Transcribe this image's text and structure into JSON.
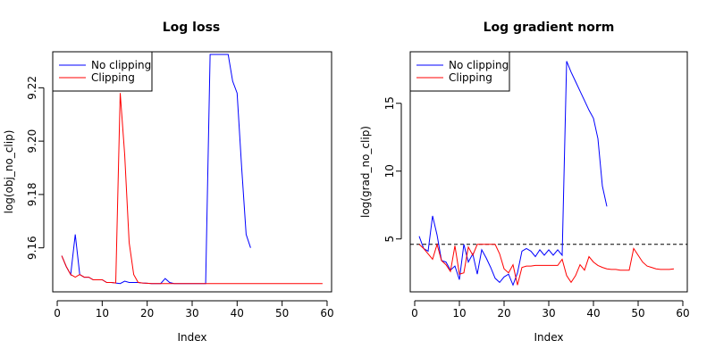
{
  "chart_data": [
    {
      "type": "line",
      "title": "Log loss",
      "xlabel": "Index",
      "ylabel": "log(obj_no_clip)",
      "xlim": [
        -1,
        61
      ],
      "ylim": [
        9.1435,
        9.2335
      ],
      "xticks": [
        0,
        10,
        20,
        30,
        40,
        50,
        60
      ],
      "yticks": [
        9.16,
        9.18,
        9.2,
        9.22
      ],
      "ytick_labels": [
        "9.16",
        "9.18",
        "9.20",
        "9.22"
      ],
      "legend_position": "top-left",
      "hline": null,
      "series": [
        {
          "name": "No clipping",
          "color": "#0000ff",
          "values": [
            9.157,
            9.153,
            9.15,
            9.165,
            9.15,
            9.149,
            9.149,
            9.148,
            9.148,
            9.148,
            9.147,
            9.147,
            9.1468,
            9.1466,
            9.1475,
            9.147,
            9.147,
            9.147,
            9.1468,
            9.1467,
            9.1466,
            9.1466,
            9.1466,
            9.1485,
            9.147,
            9.1466,
            9.1466,
            9.1466,
            9.1466,
            9.1466,
            9.1466,
            9.1466,
            9.1466,
            9.2325,
            9.2325,
            9.2325,
            9.2325,
            9.2325,
            9.2225,
            9.218,
            9.19,
            9.165,
            9.16
          ]
        },
        {
          "name": "Clipping",
          "color": "#ff0000",
          "values": [
            9.157,
            9.153,
            9.15,
            9.149,
            9.15,
            9.149,
            9.149,
            9.148,
            9.148,
            9.148,
            9.147,
            9.147,
            9.1468,
            9.218,
            9.195,
            9.162,
            9.15,
            9.147,
            9.1468,
            9.1467,
            9.1466,
            9.1466,
            9.1466,
            9.1466,
            9.1466,
            9.1466,
            9.1466,
            9.1466,
            9.1466,
            9.1466,
            9.1466,
            9.1466,
            9.1466,
            9.1466,
            9.1466,
            9.1466,
            9.1466,
            9.1466,
            9.1466,
            9.1466,
            9.1466,
            9.1466,
            9.1466,
            9.1466,
            9.1466,
            9.1466,
            9.1466,
            9.1466,
            9.1466,
            9.1466,
            9.1466,
            9.1466,
            9.1466,
            9.1466,
            9.1466,
            9.1466,
            9.1466,
            9.1466,
            9.1466
          ]
        }
      ]
    },
    {
      "type": "line",
      "title": "Log gradient norm",
      "xlabel": "Index",
      "ylabel": "log(grad_no_clip)",
      "xlim": [
        -1,
        61
      ],
      "ylim": [
        1.1,
        18.8
      ],
      "xticks": [
        0,
        10,
        20,
        30,
        40,
        50,
        60
      ],
      "yticks": [
        5,
        10,
        15
      ],
      "ytick_labels": [
        "5",
        "10",
        "15"
      ],
      "legend_position": "top-left",
      "hline": 4.6,
      "series": [
        {
          "name": "No clipping",
          "color": "#0000ff",
          "values": [
            5.2,
            4.3,
            4.1,
            6.7,
            5.3,
            3.4,
            3.3,
            2.7,
            3.0,
            2.0,
            4.6,
            3.3,
            3.9,
            2.4,
            4.2,
            3.6,
            2.9,
            2.1,
            1.8,
            2.2,
            2.4,
            1.6,
            2.5,
            4.1,
            4.3,
            4.1,
            3.7,
            4.2,
            3.8,
            4.2,
            3.8,
            4.2,
            3.8,
            18.1,
            17.3,
            16.6,
            15.9,
            15.2,
            14.5,
            13.9,
            12.4,
            8.9,
            7.4
          ]
        },
        {
          "name": "Clipping",
          "color": "#ff0000",
          "values": [
            4.6,
            4.3,
            3.9,
            3.5,
            4.6,
            3.4,
            3.1,
            2.6,
            4.5,
            2.4,
            2.5,
            4.4,
            3.8,
            4.6,
            4.6,
            4.6,
            4.6,
            4.6,
            3.9,
            2.8,
            2.5,
            3.1,
            1.6,
            2.9,
            3.0,
            3.0,
            3.05,
            3.05,
            3.05,
            3.05,
            3.05,
            3.05,
            3.5,
            2.3,
            1.8,
            2.3,
            3.1,
            2.7,
            3.7,
            3.3,
            3.05,
            2.9,
            2.8,
            2.75,
            2.75,
            2.7,
            2.7,
            2.7,
            4.3,
            3.8,
            3.3,
            3.0,
            2.9,
            2.8,
            2.75,
            2.75,
            2.75,
            2.8
          ]
        }
      ]
    }
  ]
}
